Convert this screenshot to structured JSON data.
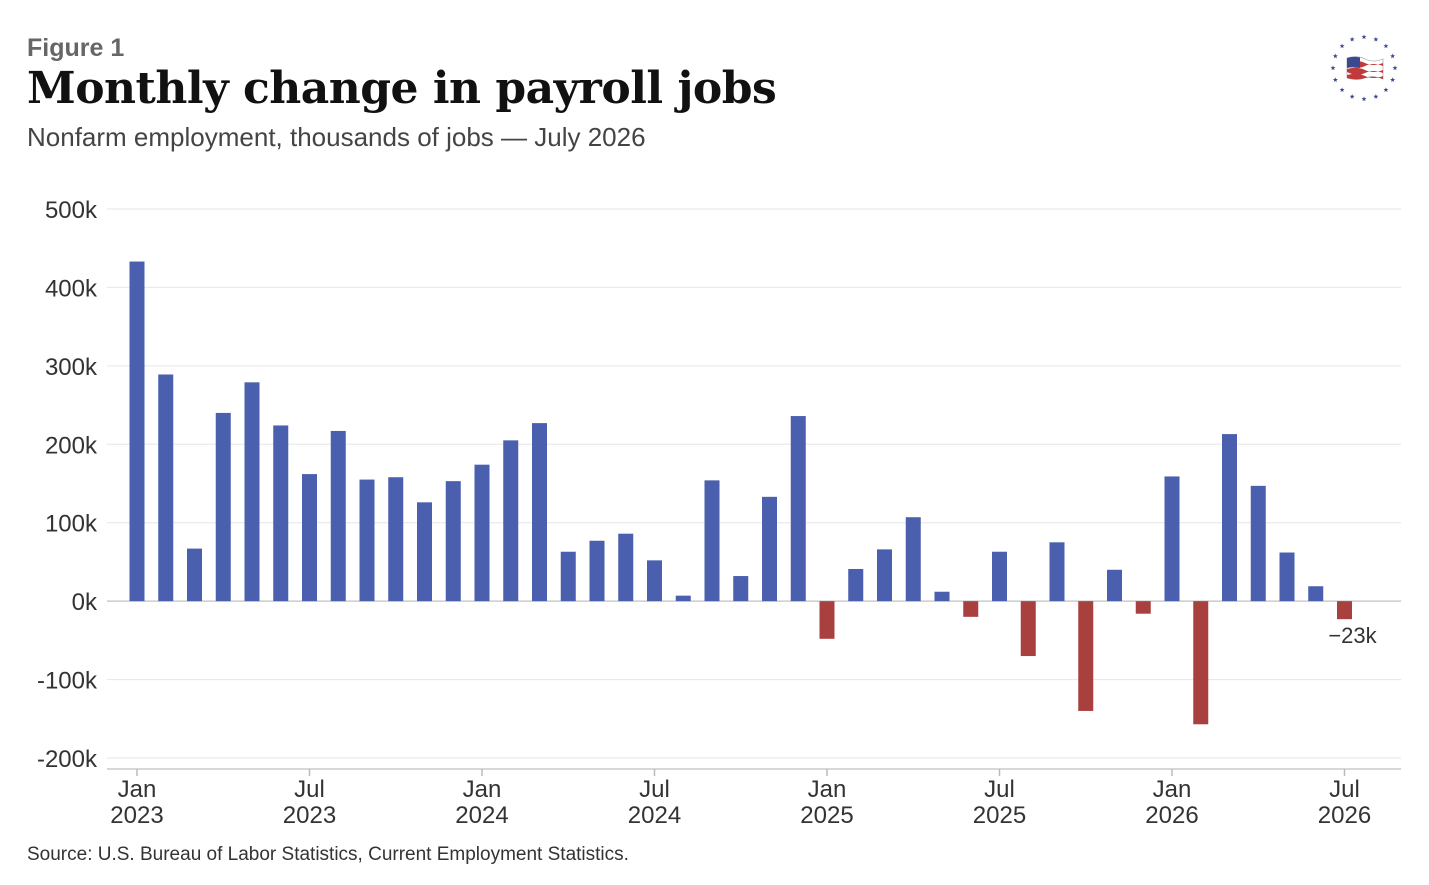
{
  "header": {
    "figure_label": "Figure 1",
    "title": "Monthly change in payroll jobs",
    "subtitle": "Nonfarm employment, thousands of jobs — July 2026"
  },
  "footer": {
    "source": "Source: U.S. Bureau of Labor Statistics, Current Employment Statistics."
  },
  "logo": {
    "icon": "us-flag-stars-icon"
  },
  "colors": {
    "positive": "#4a5fad",
    "negative": "#a8403f",
    "grid": "#e6e6e6",
    "zero_line": "#cccccc"
  },
  "chart_data": {
    "type": "bar",
    "title": "Monthly change in payroll jobs",
    "subtitle": "Nonfarm employment, thousands of jobs — July 2026",
    "xlabel": "",
    "ylabel": "",
    "ylim": [
      -200,
      500
    ],
    "yticks": [
      500,
      400,
      300,
      200,
      100,
      0,
      -100,
      -200
    ],
    "ytick_labels": [
      "500k",
      "400k",
      "300k",
      "200k",
      "100k",
      "0k",
      "-100k",
      "-200k"
    ],
    "grid": true,
    "xticks": [
      {
        "index": 0,
        "line1": "Jan",
        "line2": "2023"
      },
      {
        "index": 6,
        "line1": "Jul",
        "line2": "2023"
      },
      {
        "index": 12,
        "line1": "Jan",
        "line2": "2024"
      },
      {
        "index": 18,
        "line1": "Jul",
        "line2": "2024"
      },
      {
        "index": 24,
        "line1": "Jan",
        "line2": "2025"
      },
      {
        "index": 30,
        "line1": "Jul",
        "line2": "2025"
      },
      {
        "index": 36,
        "line1": "Jan",
        "line2": "2026"
      },
      {
        "index": 42,
        "line1": "Jul",
        "line2": "2026"
      }
    ],
    "categories": [
      "Jan 2023",
      "Feb 2023",
      "Mar 2023",
      "Apr 2023",
      "May 2023",
      "Jun 2023",
      "Jul 2023",
      "Aug 2023",
      "Sep 2023",
      "Oct 2023",
      "Nov 2023",
      "Dec 2023",
      "Jan 2024",
      "Feb 2024",
      "Mar 2024",
      "Apr 2024",
      "May 2024",
      "Jun 2024",
      "Jul 2024",
      "Aug 2024",
      "Sep 2024",
      "Oct 2024",
      "Nov 2024",
      "Dec 2024",
      "Jan 2025",
      "Feb 2025",
      "Mar 2025",
      "Apr 2025",
      "May 2025",
      "Jun 2025",
      "Jul 2025",
      "Aug 2025",
      "Sep 2025",
      "Oct 2025",
      "Nov 2025",
      "Dec 2025",
      "Jan 2026",
      "Feb 2026",
      "Mar 2026",
      "Apr 2026",
      "May 2026",
      "Jun 2026",
      "Jul 2026"
    ],
    "values": [
      433,
      289,
      67,
      240,
      279,
      224,
      162,
      217,
      155,
      158,
      126,
      153,
      174,
      205,
      227,
      63,
      77,
      86,
      52,
      7,
      154,
      32,
      133,
      236,
      -48,
      41,
      66,
      107,
      12,
      -20,
      63,
      -70,
      75,
      -140,
      40,
      -16,
      159,
      -157,
      213,
      147,
      62,
      19,
      -23
    ],
    "annotations": [
      {
        "index": 42,
        "text": "−23k"
      }
    ]
  }
}
